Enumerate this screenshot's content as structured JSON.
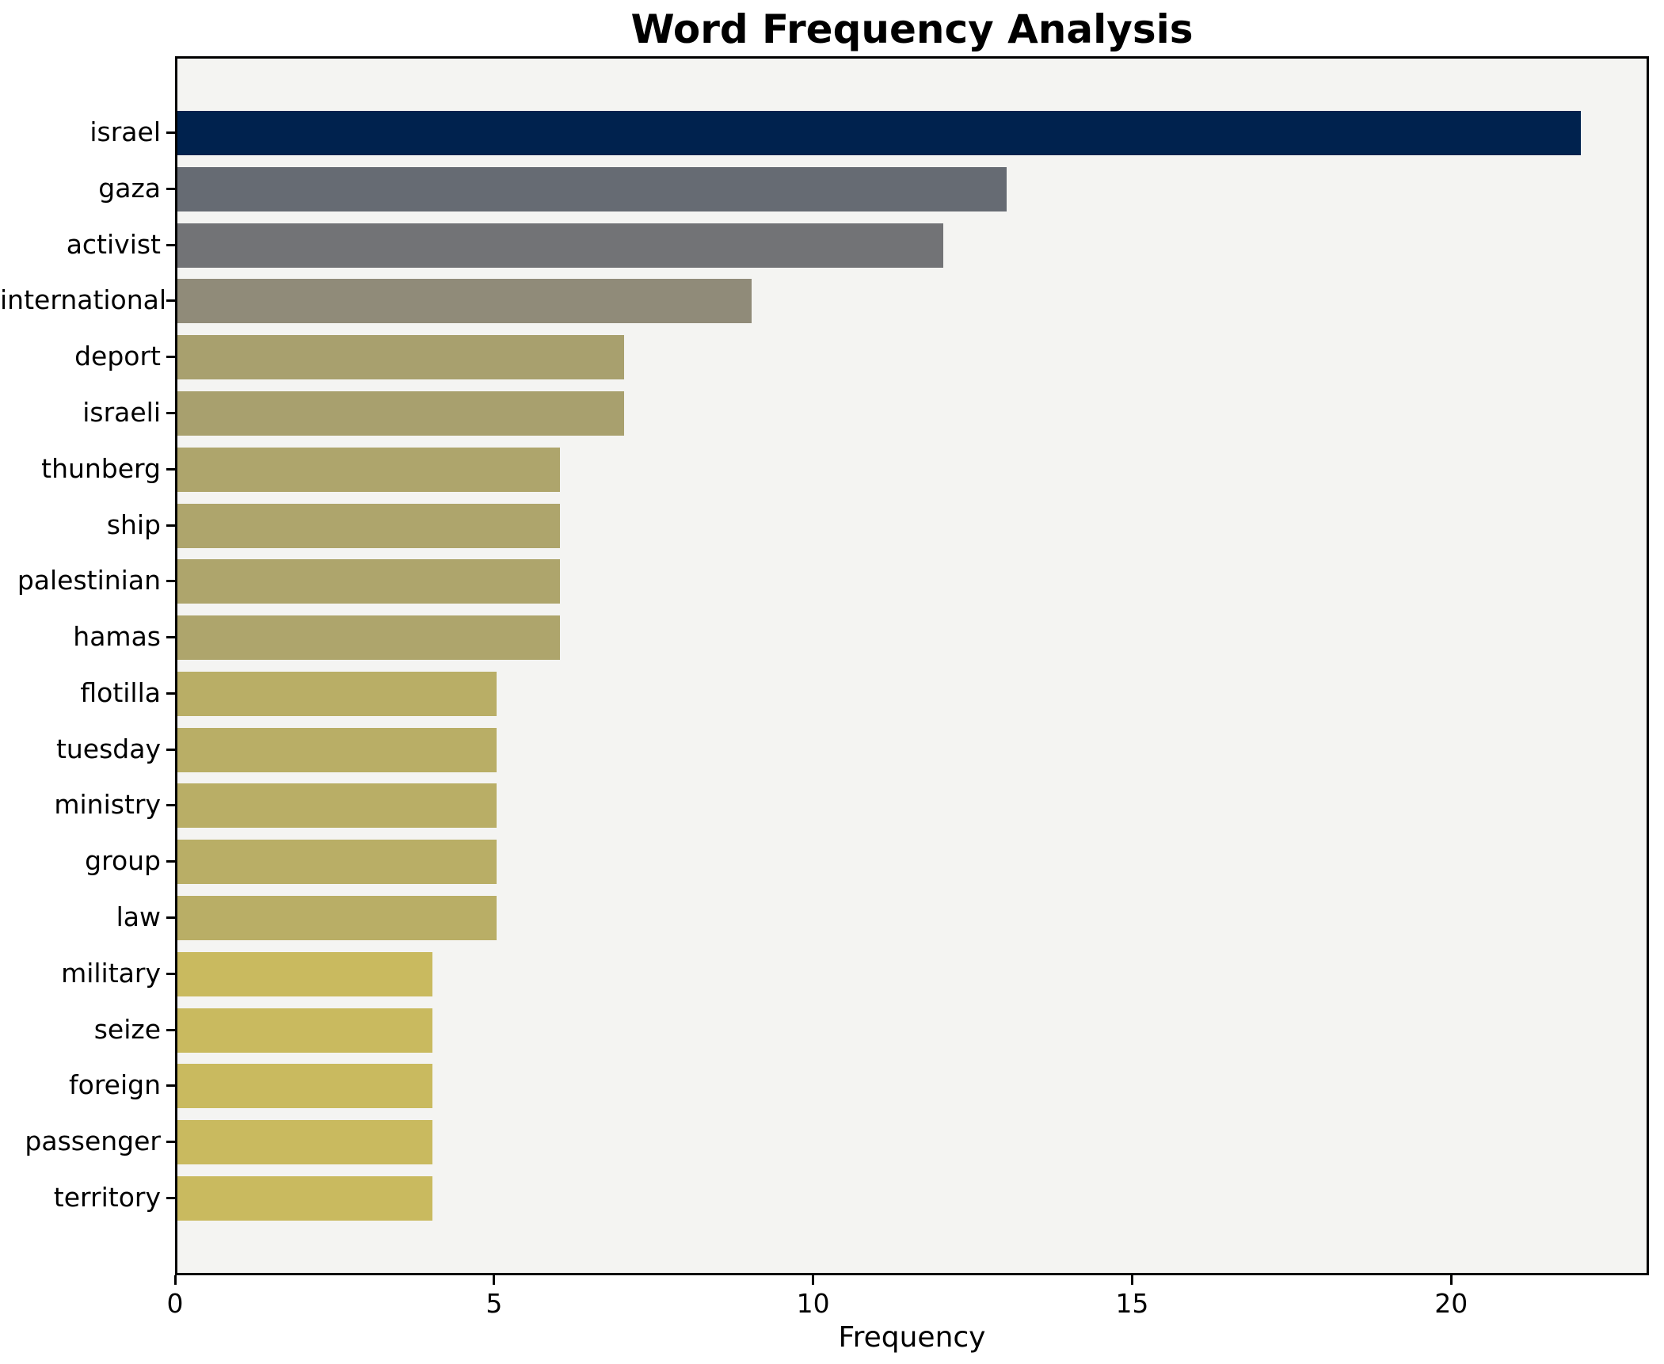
{
  "title": "Word Frequency Analysis",
  "chart_data": {
    "type": "bar",
    "orientation": "horizontal",
    "title": "Word Frequency Analysis",
    "xlabel": "Frequency",
    "ylabel": "",
    "categories": [
      "israel",
      "gaza",
      "activist",
      "international",
      "deport",
      "israeli",
      "thunberg",
      "ship",
      "palestinian",
      "hamas",
      "flotilla",
      "tuesday",
      "ministry",
      "group",
      "law",
      "military",
      "seize",
      "foreign",
      "passenger",
      "territory"
    ],
    "values": [
      22,
      13,
      12,
      9,
      7,
      7,
      6,
      6,
      6,
      6,
      5,
      5,
      5,
      5,
      5,
      4,
      4,
      4,
      4,
      4
    ],
    "bar_colors": [
      "#00224e",
      "#666b73",
      "#727376",
      "#908b79",
      "#a8a06e",
      "#a8a06e",
      "#aea56c",
      "#aea56c",
      "#aea56c",
      "#aea56c",
      "#b9ae66",
      "#b9ae66",
      "#b9ae66",
      "#b9ae66",
      "#b9ae66",
      "#c9ba5f",
      "#c9ba5f",
      "#c9ba5f",
      "#c9ba5f",
      "#c9ba5f"
    ],
    "xticks": [
      0,
      5,
      10,
      15,
      20
    ],
    "xlim": [
      0,
      23.1
    ],
    "grid": false,
    "legend": false,
    "colormap": "cividis",
    "plot_background": "#f4f4f2",
    "figure_background": "#ffffff",
    "spine_color": "#000000",
    "text_color": "#000000"
  }
}
